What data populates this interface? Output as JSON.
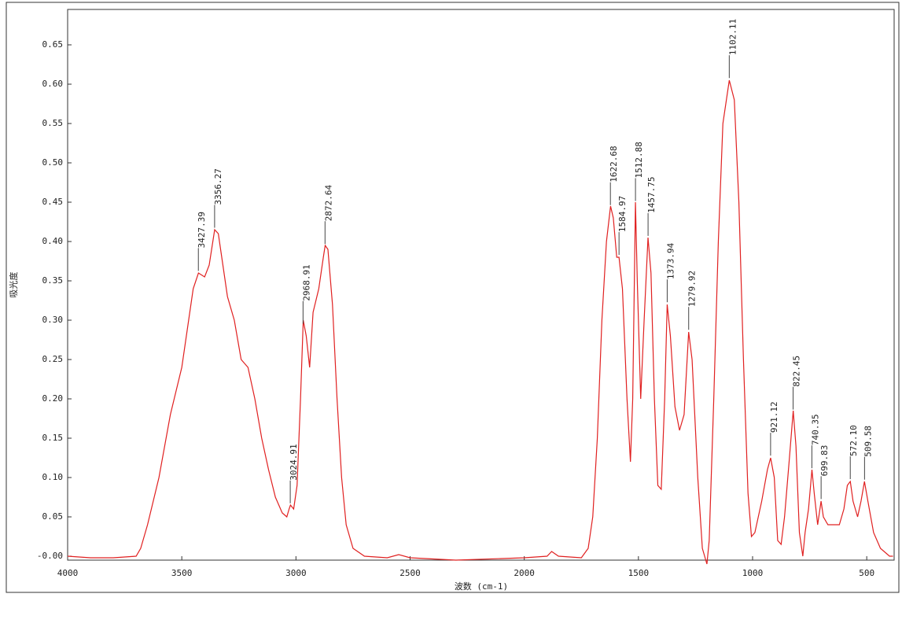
{
  "chart_data": {
    "type": "line",
    "xlabel": "波数 (cm-1)",
    "ylabel": "吸光度",
    "color": "#e02020",
    "xlim": [
      4000,
      380
    ],
    "ylim": [
      -0.005,
      0.695
    ],
    "xticks": [
      4000,
      3500,
      3000,
      2500,
      2000,
      1500,
      1000,
      500
    ],
    "yticks": [
      {
        "value": 0,
        "label": "-0.00"
      },
      {
        "value": 0.05,
        "label": "0.05"
      },
      {
        "value": 0.1,
        "label": "0.10"
      },
      {
        "value": 0.15,
        "label": "0.15"
      },
      {
        "value": 0.2,
        "label": "0.20"
      },
      {
        "value": 0.25,
        "label": "0.25"
      },
      {
        "value": 0.3,
        "label": "0.30"
      },
      {
        "value": 0.35,
        "label": "0.35"
      },
      {
        "value": 0.4,
        "label": "0.40"
      },
      {
        "value": 0.45,
        "label": "0.45"
      },
      {
        "value": 0.5,
        "label": "0.50"
      },
      {
        "value": 0.55,
        "label": "0.55"
      },
      {
        "value": 0.6,
        "label": "0.60"
      },
      {
        "value": 0.65,
        "label": "0.65"
      }
    ],
    "x": [
      4000,
      3900,
      3800,
      3700,
      3680,
      3650,
      3600,
      3550,
      3500,
      3470,
      3450,
      3427,
      3400,
      3380,
      3356,
      3340,
      3320,
      3300,
      3270,
      3240,
      3210,
      3180,
      3150,
      3120,
      3090,
      3060,
      3040,
      3030,
      3024,
      3010,
      2995,
      2980,
      2968,
      2955,
      2940,
      2925,
      2900,
      2880,
      2872,
      2860,
      2840,
      2820,
      2800,
      2780,
      2750,
      2700,
      2600,
      2550,
      2500,
      2300,
      2000,
      1900,
      1880,
      1850,
      1750,
      1720,
      1700,
      1680,
      1660,
      1640,
      1622,
      1610,
      1595,
      1585,
      1570,
      1550,
      1535,
      1525,
      1513,
      1505,
      1490,
      1475,
      1458,
      1445,
      1430,
      1415,
      1400,
      1385,
      1374,
      1360,
      1340,
      1320,
      1300,
      1280,
      1265,
      1240,
      1220,
      1200,
      1190,
      1170,
      1150,
      1130,
      1102,
      1080,
      1060,
      1040,
      1020,
      1005,
      990,
      960,
      935,
      921,
      905,
      890,
      875,
      860,
      840,
      822,
      810,
      795,
      780,
      770,
      755,
      740,
      730,
      715,
      700,
      690,
      670,
      620,
      600,
      585,
      572,
      560,
      540,
      525,
      510,
      495,
      470,
      440,
      400,
      385
    ],
    "values": [
      0.0,
      -0.002,
      -0.002,
      0.0,
      0.01,
      0.04,
      0.1,
      0.18,
      0.24,
      0.3,
      0.34,
      0.36,
      0.355,
      0.37,
      0.415,
      0.41,
      0.37,
      0.33,
      0.3,
      0.25,
      0.24,
      0.2,
      0.15,
      0.11,
      0.075,
      0.055,
      0.05,
      0.06,
      0.065,
      0.06,
      0.09,
      0.2,
      0.3,
      0.28,
      0.24,
      0.31,
      0.34,
      0.38,
      0.395,
      0.39,
      0.32,
      0.2,
      0.1,
      0.04,
      0.01,
      0.0,
      -0.002,
      0.002,
      -0.002,
      -0.005,
      -0.002,
      0.0,
      0.006,
      0.0,
      -0.002,
      0.01,
      0.05,
      0.15,
      0.3,
      0.4,
      0.445,
      0.43,
      0.38,
      0.38,
      0.34,
      0.2,
      0.12,
      0.2,
      0.45,
      0.35,
      0.2,
      0.3,
      0.405,
      0.36,
      0.2,
      0.09,
      0.085,
      0.2,
      0.32,
      0.28,
      0.19,
      0.16,
      0.18,
      0.285,
      0.25,
      0.1,
      0.01,
      -0.01,
      0.02,
      0.2,
      0.4,
      0.55,
      0.605,
      0.58,
      0.45,
      0.25,
      0.08,
      0.025,
      0.03,
      0.07,
      0.11,
      0.125,
      0.1,
      0.02,
      0.015,
      0.05,
      0.12,
      0.185,
      0.14,
      0.03,
      0.0,
      0.03,
      0.06,
      0.11,
      0.08,
      0.04,
      0.07,
      0.05,
      0.04,
      0.04,
      0.06,
      0.09,
      0.095,
      0.07,
      0.05,
      0.07,
      0.095,
      0.07,
      0.03,
      0.01,
      0.0,
      0.0
    ],
    "peaks": [
      {
        "value": 3427.39,
        "label": "3427.39"
      },
      {
        "value": 3356.27,
        "label": "3356.27"
      },
      {
        "value": 3024.91,
        "label": "3024.91"
      },
      {
        "value": 2968.91,
        "label": "2968.91"
      },
      {
        "value": 2872.64,
        "label": "2872.64"
      },
      {
        "value": 1622.68,
        "label": "1622.68"
      },
      {
        "value": 1584.97,
        "label": "1584.97"
      },
      {
        "value": 1512.88,
        "label": "1512.88"
      },
      {
        "value": 1457.75,
        "label": "1457.75"
      },
      {
        "value": 1373.94,
        "label": "1373.94"
      },
      {
        "value": 1279.92,
        "label": "1279.92"
      },
      {
        "value": 1102.11,
        "label": "1102.11"
      },
      {
        "value": 921.12,
        "label": "921.12"
      },
      {
        "value": 822.45,
        "label": "822.45"
      },
      {
        "value": 740.35,
        "label": "740.35"
      },
      {
        "value": 699.83,
        "label": "699.83"
      },
      {
        "value": 572.1,
        "label": "572.10"
      },
      {
        "value": 509.58,
        "label": "509.58"
      }
    ]
  }
}
